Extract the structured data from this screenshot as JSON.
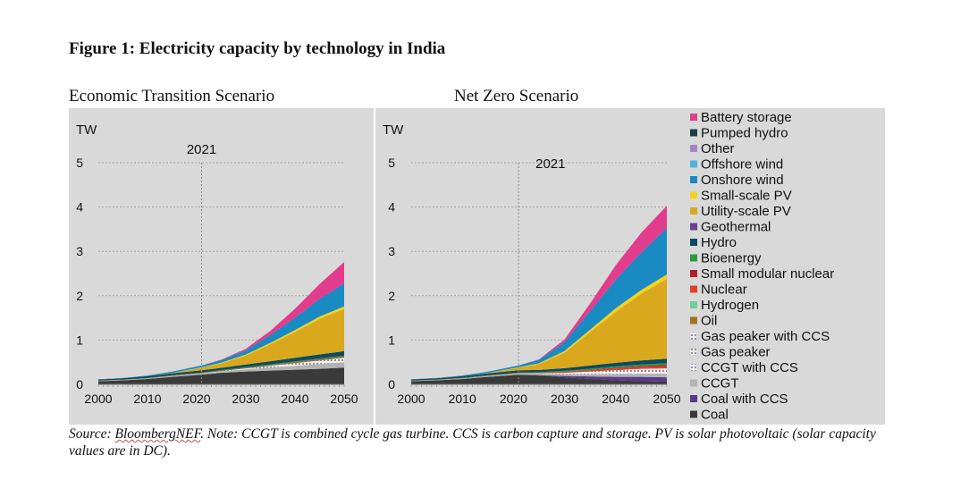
{
  "figure": {
    "title": "Figure 1: Electricity capacity by technology in India",
    "source_prefix": "Source: ",
    "source_name": "BloombergNEF",
    "source_rest": ".  Note: CCGT is combined cycle gas turbine. CCS is carbon capture and storage. PV is solar photovoltaic (solar capacity values are in DC)."
  },
  "chart_data": [
    {
      "type": "area",
      "stacked": true,
      "subtitle": "Economic Transition Scenario",
      "ylabel": "TW",
      "ylim": [
        0,
        5
      ],
      "yticks": [
        "0",
        "1",
        "2",
        "3",
        "4",
        "5"
      ],
      "xticks": [
        "2000",
        "2010",
        "2020",
        "2030",
        "2040",
        "2050"
      ],
      "x": [
        2000,
        2005,
        2010,
        2015,
        2021,
        2025,
        2030,
        2035,
        2040,
        2045,
        2050
      ],
      "marker": {
        "year": 2021,
        "label": "2021"
      },
      "series": [
        {
          "name": "Coal",
          "values": [
            0.07,
            0.09,
            0.12,
            0.17,
            0.22,
            0.26,
            0.29,
            0.31,
            0.33,
            0.35,
            0.38
          ]
        },
        {
          "name": "CCGT",
          "values": [
            0.01,
            0.01,
            0.015,
            0.02,
            0.025,
            0.03,
            0.05,
            0.07,
            0.09,
            0.11,
            0.12
          ]
        },
        {
          "name": "Gas peaker",
          "values": [
            0,
            0,
            0,
            0,
            0.005,
            0.01,
            0.02,
            0.04,
            0.06,
            0.08,
            0.1
          ]
        },
        {
          "name": "Nuclear",
          "values": [
            0.003,
            0.004,
            0.005,
            0.006,
            0.007,
            0.008,
            0.01,
            0.012,
            0.015,
            0.018,
            0.02
          ]
        },
        {
          "name": "Bioenergy",
          "values": [
            0.003,
            0.005,
            0.007,
            0.01,
            0.012,
            0.014,
            0.018,
            0.02,
            0.024,
            0.027,
            0.03
          ]
        },
        {
          "name": "Hydro",
          "values": [
            0.025,
            0.03,
            0.038,
            0.043,
            0.047,
            0.05,
            0.06,
            0.07,
            0.08,
            0.09,
            0.1
          ]
        },
        {
          "name": "Utility-scale PV",
          "values": [
            0,
            0,
            0.002,
            0.01,
            0.06,
            0.1,
            0.2,
            0.38,
            0.58,
            0.8,
            0.95
          ]
        },
        {
          "name": "Small-scale PV",
          "values": [
            0,
            0,
            0,
            0.002,
            0.01,
            0.015,
            0.025,
            0.035,
            0.045,
            0.055,
            0.06
          ]
        },
        {
          "name": "Onshore wind",
          "values": [
            0.001,
            0.005,
            0.013,
            0.025,
            0.04,
            0.06,
            0.1,
            0.18,
            0.28,
            0.4,
            0.52
          ]
        },
        {
          "name": "Battery storage",
          "values": [
            0,
            0,
            0,
            0,
            0,
            0.01,
            0.03,
            0.09,
            0.2,
            0.33,
            0.48
          ]
        }
      ]
    },
    {
      "type": "area",
      "stacked": true,
      "subtitle": "Net Zero Scenario",
      "ylabel": "TW",
      "ylim": [
        0,
        5
      ],
      "yticks": [
        "0",
        "1",
        "2",
        "3",
        "4",
        "5"
      ],
      "xticks": [
        "2000",
        "2010",
        "2020",
        "2030",
        "2040",
        "2050"
      ],
      "x": [
        2000,
        2005,
        2010,
        2015,
        2021,
        2025,
        2030,
        2035,
        2040,
        2045,
        2050
      ],
      "marker": {
        "year": 2021,
        "label": "2021"
      },
      "series": [
        {
          "name": "Coal",
          "values": [
            0.07,
            0.09,
            0.12,
            0.17,
            0.22,
            0.2,
            0.16,
            0.12,
            0.09,
            0.07,
            0.06
          ]
        },
        {
          "name": "Coal with CCS",
          "values": [
            0,
            0,
            0,
            0,
            0,
            0.01,
            0.03,
            0.06,
            0.08,
            0.1,
            0.1
          ]
        },
        {
          "name": "CCGT",
          "values": [
            0.01,
            0.01,
            0.015,
            0.02,
            0.025,
            0.03,
            0.04,
            0.05,
            0.06,
            0.07,
            0.08
          ]
        },
        {
          "name": "Gas peaker",
          "values": [
            0,
            0,
            0,
            0,
            0.005,
            0.01,
            0.03,
            0.06,
            0.09,
            0.11,
            0.12
          ]
        },
        {
          "name": "Nuclear",
          "values": [
            0.003,
            0.004,
            0.005,
            0.006,
            0.007,
            0.01,
            0.02,
            0.03,
            0.04,
            0.045,
            0.05
          ]
        },
        {
          "name": "Small modular nuclear",
          "values": [
            0,
            0,
            0,
            0,
            0,
            0,
            0.005,
            0.01,
            0.015,
            0.02,
            0.03
          ]
        },
        {
          "name": "Bioenergy",
          "values": [
            0.003,
            0.005,
            0.007,
            0.01,
            0.012,
            0.015,
            0.02,
            0.025,
            0.03,
            0.035,
            0.04
          ]
        },
        {
          "name": "Hydro",
          "values": [
            0.025,
            0.03,
            0.038,
            0.043,
            0.047,
            0.05,
            0.06,
            0.07,
            0.08,
            0.09,
            0.1
          ]
        },
        {
          "name": "Utility-scale PV",
          "values": [
            0,
            0,
            0.002,
            0.01,
            0.06,
            0.13,
            0.35,
            0.75,
            1.15,
            1.5,
            1.8
          ]
        },
        {
          "name": "Small-scale PV",
          "values": [
            0,
            0,
            0,
            0.002,
            0.01,
            0.02,
            0.04,
            0.06,
            0.08,
            0.09,
            0.1
          ]
        },
        {
          "name": "Onshore wind",
          "values": [
            0.001,
            0.005,
            0.013,
            0.025,
            0.04,
            0.08,
            0.2,
            0.42,
            0.65,
            0.85,
            1.05
          ]
        },
        {
          "name": "Battery storage",
          "values": [
            0,
            0,
            0,
            0,
            0,
            0.01,
            0.06,
            0.17,
            0.32,
            0.44,
            0.5
          ]
        }
      ]
    }
  ],
  "legend": {
    "position": "right",
    "entries": [
      {
        "name": "Battery storage",
        "color": "#e23c8c",
        "pattern": "solid"
      },
      {
        "name": "Pumped hydro",
        "color": "#1f3d4d",
        "pattern": "solid"
      },
      {
        "name": "Other",
        "color": "#a684c4",
        "pattern": "solid"
      },
      {
        "name": "Offshore wind",
        "color": "#4fb3d9",
        "pattern": "solid"
      },
      {
        "name": "Onshore wind",
        "color": "#1a8ac3",
        "pattern": "solid"
      },
      {
        "name": "Small-scale PV",
        "color": "#f2d21b",
        "pattern": "solid"
      },
      {
        "name": "Utility-scale PV",
        "color": "#d9a81c",
        "pattern": "solid"
      },
      {
        "name": "Geothermal",
        "color": "#6a3f96",
        "pattern": "solid"
      },
      {
        "name": "Hydro",
        "color": "#0e4a63",
        "pattern": "solid"
      },
      {
        "name": "Bioenergy",
        "color": "#2a9a3a",
        "pattern": "solid"
      },
      {
        "name": "Small modular nuclear",
        "color": "#b0202c",
        "pattern": "solid"
      },
      {
        "name": "Nuclear",
        "color": "#e0402e",
        "pattern": "solid"
      },
      {
        "name": "Hydrogen",
        "color": "#6fcf97",
        "pattern": "solid"
      },
      {
        "name": "Oil",
        "color": "#a0741a",
        "pattern": "solid"
      },
      {
        "name": "Gas peaker with CCS",
        "color": "#8a79b8",
        "pattern": "dots"
      },
      {
        "name": "Gas peaker",
        "color": "#8a8a8a",
        "pattern": "dots"
      },
      {
        "name": "CCGT with CCS",
        "color": "#9a7fc0",
        "pattern": "dots"
      },
      {
        "name": "CCGT",
        "color": "#b3b3b3",
        "pattern": "solid"
      },
      {
        "name": "Coal with CCS",
        "color": "#5a3a8a",
        "pattern": "solid"
      },
      {
        "name": "Coal",
        "color": "#3a3a3a",
        "pattern": "solid"
      }
    ]
  }
}
